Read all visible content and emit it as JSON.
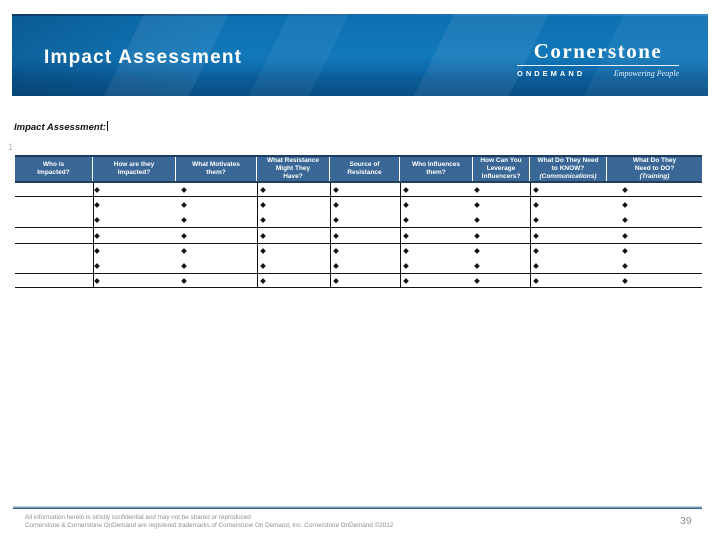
{
  "slide": {
    "title": "Impact Assessment",
    "page_number": "39"
  },
  "logo": {
    "name": "Cornerstone",
    "ondemand": "ONDEMAND",
    "tagline": "Empowering People"
  },
  "content": {
    "table_title": "Impact Assessment:",
    "margin_artifact": "1"
  },
  "table": {
    "columns": [
      {
        "label": "Who is\nImpacted?",
        "sublabel": ""
      },
      {
        "label": "How are they\nImpacted?",
        "sublabel": ""
      },
      {
        "label": "What Motivates\nthem?",
        "sublabel": ""
      },
      {
        "label": "What Resistance\nMight They\nHave?",
        "sublabel": ""
      },
      {
        "label": "Source of\nResistance",
        "sublabel": ""
      },
      {
        "label": "Who Influences\nthem?",
        "sublabel": ""
      },
      {
        "label": "How Can You\nLeverage\nInfluencers?",
        "sublabel": ""
      },
      {
        "label": "What Do They Need\nto KNOW?",
        "sublabel": "(Communications)"
      },
      {
        "label": "What Do They\nNeed to DO?",
        "sublabel": "(Training)"
      }
    ],
    "rows": [
      {
        "bullet_lines": 1
      },
      {
        "bullet_lines": 2
      },
      {
        "bullet_lines": 1
      },
      {
        "bullet_lines": 2
      },
      {
        "bullet_lines": 1
      }
    ],
    "header_bg": "#3a6795",
    "border_color": "#141414",
    "bullet_shape": "diamond"
  },
  "footer": {
    "disclaimer_line1": "All information herein is strictly confidential and may not be shared or reproduced",
    "disclaimer_line2": "Cornerstone & Cornerstone OnDemand are registered trademarks of Cornerstone On Demand, Inc. Cornerstone OnDemand ©2012"
  },
  "colors": {
    "banner_blue": "#0f74b6",
    "banner_dark": "#0a5d9a",
    "header_bg": "#3a6795",
    "footer_rule_light": "#b5d4e6",
    "footer_rule_dark": "#3c6288",
    "footer_text": "#8f8f8f"
  }
}
